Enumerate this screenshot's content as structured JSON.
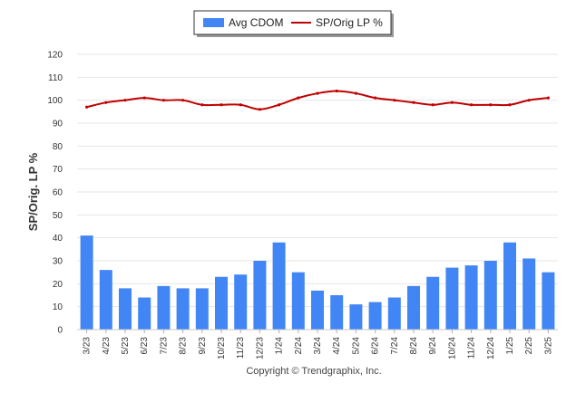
{
  "chart_data": {
    "type": "bar",
    "categories": [
      "3/23",
      "4/23",
      "5/23",
      "6/23",
      "7/23",
      "8/23",
      "9/23",
      "10/23",
      "11/23",
      "12/23",
      "1/24",
      "2/24",
      "3/24",
      "4/24",
      "5/24",
      "6/24",
      "7/24",
      "8/24",
      "9/24",
      "10/24",
      "11/24",
      "12/24",
      "1/25",
      "2/25",
      "3/25"
    ],
    "series": [
      {
        "name": "Avg CDOM",
        "kind": "bar",
        "color": "#4285f4",
        "values": [
          41,
          26,
          18,
          14,
          19,
          18,
          18,
          23,
          24,
          30,
          38,
          25,
          17,
          15,
          11,
          12,
          14,
          19,
          23,
          27,
          28,
          30,
          38,
          31,
          25
        ]
      },
      {
        "name": "SP/Orig LP %",
        "kind": "line",
        "color": "#c00000",
        "values": [
          97,
          99,
          100,
          101,
          100,
          100,
          98,
          98,
          98,
          96,
          98,
          101,
          103,
          104,
          103,
          101,
          100,
          99,
          98,
          99,
          98,
          98,
          98,
          100,
          101
        ]
      }
    ],
    "title": "",
    "xlabel": "",
    "ylabel": "SP/Orig. LP %",
    "ylim": [
      0,
      120
    ],
    "yticks": [
      0,
      10,
      20,
      30,
      40,
      50,
      60,
      70,
      80,
      90,
      100,
      110,
      120
    ],
    "grid": true,
    "legend_position": "top-center"
  },
  "footer": {
    "credit": "Copyright © Trendgraphix, Inc."
  }
}
